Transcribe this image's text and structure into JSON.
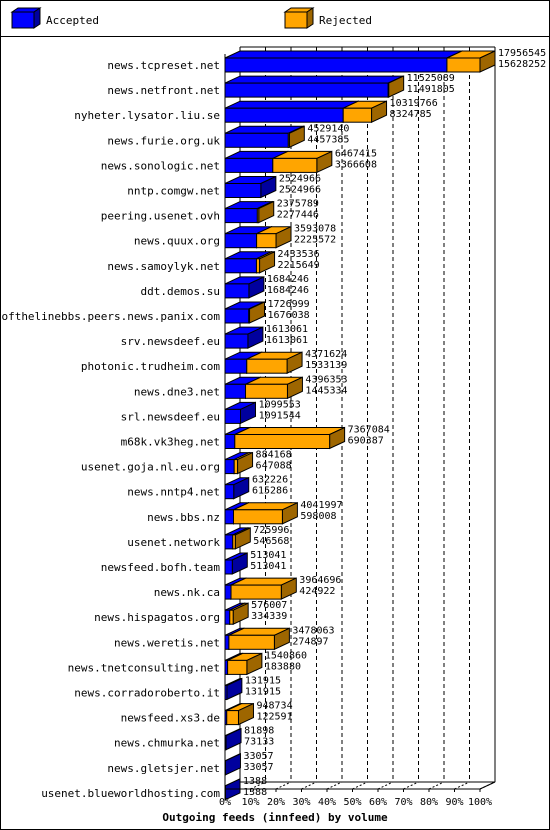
{
  "chart_data": {
    "type": "bar",
    "title": "Outgoing feeds (innfeed) by volume",
    "legend_position": "top",
    "series": [
      {
        "name": "Accepted",
        "color": "#0000ff"
      },
      {
        "name": "Rejected",
        "color": "#ffa500"
      }
    ],
    "x_ticks": [
      "0%",
      "10%",
      "20%",
      "30%",
      "40%",
      "50%",
      "60%",
      "70%",
      "80%",
      "90%",
      "100%"
    ],
    "xlim": [
      0,
      100
    ],
    "grid": true,
    "rows": [
      {
        "label": "news.tcpreset.net",
        "total": 17956545,
        "accepted": 15628252,
        "total_text": "17956545",
        "accepted_text": "15628252"
      },
      {
        "label": "news.netfront.net",
        "total": 11525089,
        "accepted": 11491805,
        "total_text": "11525089",
        "accepted_text": "11491805"
      },
      {
        "label": "nyheter.lysator.liu.se",
        "total": 10319766,
        "accepted": 8324785,
        "total_text": "10319766",
        "accepted_text": "8324785"
      },
      {
        "label": "news.furie.org.uk",
        "total": 4529140,
        "accepted": 4457385,
        "total_text": "4529140",
        "accepted_text": "4457385"
      },
      {
        "label": "news.sonologic.net",
        "total": 6467415,
        "accepted": 3366608,
        "total_text": "6467415",
        "accepted_text": "3366608"
      },
      {
        "label": "nntp.comgw.net",
        "total": 2524966,
        "accepted": 2524966,
        "total_text": "2524966",
        "accepted_text": "2524966"
      },
      {
        "label": "peering.usenet.ovh",
        "total": 2375789,
        "accepted": 2277446,
        "total_text": "2375789",
        "accepted_text": "2277446"
      },
      {
        "label": "news.quux.org",
        "total": 3593078,
        "accepted": 2225572,
        "total_text": "3593078",
        "accepted_text": "2225572"
      },
      {
        "label": "news.samoylyk.net",
        "total": 2433536,
        "accepted": 2215649,
        "total_text": "2433536",
        "accepted_text": "2215649"
      },
      {
        "label": "ddt.demos.su",
        "total": 1684246,
        "accepted": 1684246,
        "total_text": "1684246",
        "accepted_text": "1684246"
      },
      {
        "label": "endofthelinebbs.peers.news.panix.com",
        "total": 1726999,
        "accepted": 1676038,
        "total_text": "1726999",
        "accepted_text": "1676038"
      },
      {
        "label": "srv.newsdeef.eu",
        "total": 1613061,
        "accepted": 1613061,
        "total_text": "1613061",
        "accepted_text": "1613061"
      },
      {
        "label": "photonic.trudheim.com",
        "total": 4371624,
        "accepted": 1533139,
        "total_text": "4371624",
        "accepted_text": "1533139"
      },
      {
        "label": "news.dne3.net",
        "total": 4396353,
        "accepted": 1445334,
        "total_text": "4396353",
        "accepted_text": "1445334"
      },
      {
        "label": "srl.newsdeef.eu",
        "total": 1099553,
        "accepted": 1091544,
        "total_text": "1099553",
        "accepted_text": "1091544"
      },
      {
        "label": "m68k.vk3heg.net",
        "total": 7367084,
        "accepted": 690387,
        "total_text": "7367084",
        "accepted_text": "690387"
      },
      {
        "label": "usenet.goja.nl.eu.org",
        "total": 884168,
        "accepted": 647088,
        "total_text": "884168",
        "accepted_text": "647088"
      },
      {
        "label": "news.nntp4.net",
        "total": 632226,
        "accepted": 615286,
        "total_text": "632226",
        "accepted_text": "615286"
      },
      {
        "label": "news.bbs.nz",
        "total": 4041997,
        "accepted": 598008,
        "total_text": "4041997",
        "accepted_text": "598008"
      },
      {
        "label": "usenet.network",
        "total": 725996,
        "accepted": 546568,
        "total_text": "725996",
        "accepted_text": "546568"
      },
      {
        "label": "newsfeed.bofh.team",
        "total": 513041,
        "accepted": 513041,
        "total_text": "513041",
        "accepted_text": "513041"
      },
      {
        "label": "news.nk.ca",
        "total": 3964696,
        "accepted": 424922,
        "total_text": "3964696",
        "accepted_text": "424922"
      },
      {
        "label": "news.hispagatos.org",
        "total": 576007,
        "accepted": 334339,
        "total_text": "576007",
        "accepted_text": "334339"
      },
      {
        "label": "news.weretis.net",
        "total": 3478063,
        "accepted": 274897,
        "total_text": "3478063",
        "accepted_text": "274897"
      },
      {
        "label": "news.tnetconsulting.net",
        "total": 1540860,
        "accepted": 183880,
        "total_text": "1540860",
        "accepted_text": "183880"
      },
      {
        "label": "news.corradoroberto.it",
        "total": 131915,
        "accepted": 131915,
        "total_text": "131915",
        "accepted_text": "131915"
      },
      {
        "label": "newsfeed.xs3.de",
        "total": 948734,
        "accepted": 122591,
        "total_text": "948734",
        "accepted_text": "122591"
      },
      {
        "label": "news.chmurka.net",
        "total": 81898,
        "accepted": 73133,
        "total_text": "81898",
        "accepted_text": "73133"
      },
      {
        "label": "news.gletsjer.net",
        "total": 33057,
        "accepted": 33057,
        "total_text": "33057",
        "accepted_text": "33057"
      },
      {
        "label": "usenet.blueworldhosting.com",
        "total": 1388,
        "accepted": 1388,
        "total_text": "1388",
        "accepted_text": "1388"
      }
    ]
  }
}
